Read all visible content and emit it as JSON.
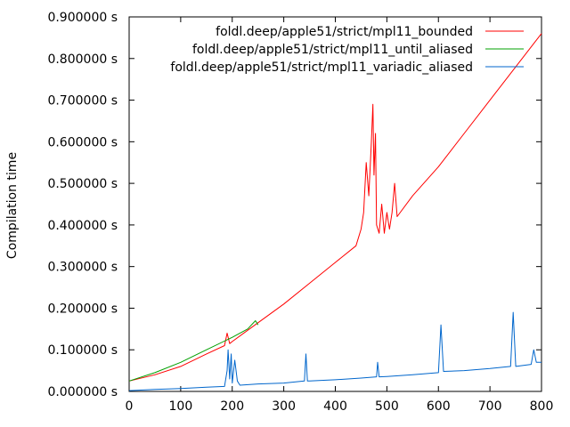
{
  "chart_data": {
    "type": "line",
    "title": "",
    "xlabel": "",
    "ylabel": "Compilation time",
    "xlim": [
      0,
      800
    ],
    "ylim": [
      0,
      0.9
    ],
    "grid": false,
    "legend_position": "top-right",
    "x_ticks": [
      0,
      100,
      200,
      300,
      400,
      500,
      600,
      700,
      800
    ],
    "x_tick_labels": [
      "0",
      "100",
      "200",
      "300",
      "400",
      "500",
      "600",
      "700",
      "800"
    ],
    "y_ticks": [
      0,
      0.1,
      0.2,
      0.3,
      0.4,
      0.5,
      0.6,
      0.7,
      0.8,
      0.9
    ],
    "y_tick_labels": [
      "0.000000 s",
      "0.100000 s",
      "0.200000 s",
      "0.300000 s",
      "0.400000 s",
      "0.500000 s",
      "0.600000 s",
      "0.700000 s",
      "0.800000 s",
      "0.900000 s"
    ],
    "series": [
      {
        "name": "foldl.deep/apple51/strict/mpl11_bounded",
        "color": "#ff0000",
        "x": [
          0,
          50,
          100,
          150,
          185,
          190,
          195,
          200,
          250,
          300,
          350,
          400,
          440,
          450,
          455,
          460,
          465,
          470,
          473,
          475,
          478,
          480,
          485,
          490,
          495,
          500,
          505,
          510,
          515,
          520,
          550,
          600,
          650,
          700,
          750,
          800
        ],
        "y": [
          0.025,
          0.04,
          0.06,
          0.09,
          0.11,
          0.14,
          0.115,
          0.12,
          0.165,
          0.21,
          0.26,
          0.31,
          0.35,
          0.39,
          0.43,
          0.55,
          0.47,
          0.6,
          0.69,
          0.52,
          0.62,
          0.4,
          0.38,
          0.45,
          0.38,
          0.43,
          0.39,
          0.43,
          0.5,
          0.42,
          0.47,
          0.54,
          0.62,
          0.7,
          0.78,
          0.86
        ]
      },
      {
        "name": "foldl.deep/apple51/strict/mpl11_until_aliased",
        "color": "#00a000",
        "x": [
          0,
          50,
          100,
          150,
          200,
          230,
          245,
          250
        ],
        "y": [
          0.025,
          0.045,
          0.07,
          0.1,
          0.13,
          0.15,
          0.17,
          0.16
        ]
      },
      {
        "name": "foldl.deep/apple51/strict/mpl11_variadic_aliased",
        "color": "#0066cc",
        "x": [
          0,
          50,
          100,
          150,
          185,
          190,
          192,
          195,
          198,
          200,
          205,
          210,
          215,
          250,
          300,
          340,
          343,
          346,
          350,
          400,
          450,
          480,
          482,
          485,
          500,
          550,
          600,
          605,
          610,
          650,
          700,
          740,
          745,
          750,
          780,
          785,
          790,
          800
        ],
        "y": [
          0.002,
          0.005,
          0.007,
          0.01,
          0.012,
          0.05,
          0.1,
          0.03,
          0.09,
          0.02,
          0.075,
          0.025,
          0.015,
          0.018,
          0.02,
          0.025,
          0.09,
          0.025,
          0.025,
          0.028,
          0.032,
          0.035,
          0.07,
          0.035,
          0.036,
          0.04,
          0.045,
          0.16,
          0.048,
          0.05,
          0.055,
          0.06,
          0.19,
          0.06,
          0.065,
          0.1,
          0.07,
          0.07
        ]
      }
    ]
  }
}
